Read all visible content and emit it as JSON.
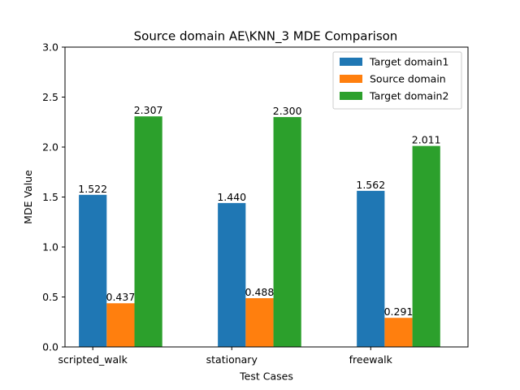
{
  "chart_data": {
    "type": "bar",
    "title": "Source domain AE\\KNN_3 MDE Comparison",
    "xlabel": "Test Cases",
    "ylabel": "MDE Value",
    "categories": [
      "scripted_walk",
      "stationary",
      "freewalk"
    ],
    "series": [
      {
        "name": "Target domain1",
        "values": [
          1.522,
          1.44,
          1.562
        ],
        "color": "#1f77b4",
        "labels": [
          "1.522",
          "1.440",
          "1.562"
        ]
      },
      {
        "name": "Source domain",
        "values": [
          0.437,
          0.488,
          0.291
        ],
        "color": "#ff7f0e",
        "labels": [
          "0.437",
          "0.488",
          "0.291"
        ]
      },
      {
        "name": "Target domain2",
        "values": [
          2.307,
          2.3,
          2.011
        ],
        "color": "#2ca02c",
        "labels": [
          "2.307",
          "2.300",
          "2.011"
        ]
      }
    ],
    "ylim": [
      0,
      3.0
    ],
    "yticks": [
      "0.0",
      "0.5",
      "1.0",
      "1.5",
      "2.0",
      "2.5",
      "3.0"
    ],
    "ytick_values": [
      0,
      0.5,
      1.0,
      1.5,
      2.0,
      2.5,
      3.0
    ],
    "legend_position": "top-right",
    "grid": false
  }
}
